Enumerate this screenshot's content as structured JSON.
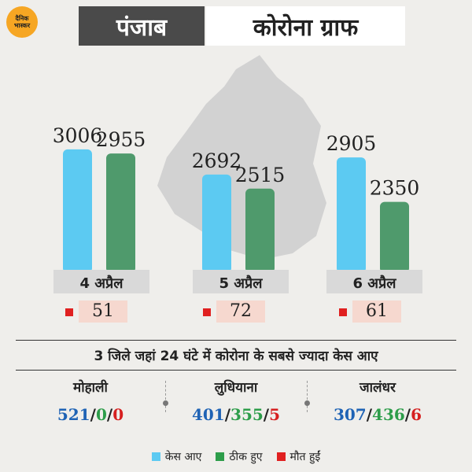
{
  "logo": {
    "line1": "दैनिक",
    "line2": "भास्कर"
  },
  "header": {
    "state": "पंजाब",
    "title": "कोरोना ग्राफ"
  },
  "colors": {
    "cases": "#5ccaf2",
    "recovered": "#4f9a6c",
    "deaths": "#e02020"
  },
  "chart_data": {
    "type": "bar",
    "categories": [
      "4 अप्रैल",
      "5 अप्रैल",
      "6 अप्रैल"
    ],
    "series": [
      {
        "name": "केस आए",
        "values": [
          3006,
          2692,
          2905
        ]
      },
      {
        "name": "ठीक हुए",
        "values": [
          2955,
          2515,
          2350
        ]
      },
      {
        "name": "मौत हुईं",
        "values": [
          51,
          72,
          61
        ]
      }
    ],
    "labels": {
      "cases": [
        "3006",
        "2692",
        "2905"
      ],
      "recovered": [
        "2955",
        "2515",
        "2350"
      ],
      "deaths": [
        "51",
        "72",
        "61"
      ]
    },
    "ylim": [
      1500,
      3300
    ],
    "legend_position": "bottom"
  },
  "subtitle": "3 जिले जहां 24 घंटे में कोरोना के सबसे ज्यादा केस आए",
  "districts": [
    {
      "name": "मोहाली",
      "cases": "521",
      "recovered": "0",
      "deaths": "0"
    },
    {
      "name": "लुधियाना",
      "cases": "401",
      "recovered": "355",
      "deaths": "5"
    },
    {
      "name": "जालंधर",
      "cases": "307",
      "recovered": "436",
      "deaths": "6"
    }
  ],
  "sep": "/",
  "legend": [
    "केस आए",
    "ठीक हुए",
    "मौत हुईं"
  ]
}
